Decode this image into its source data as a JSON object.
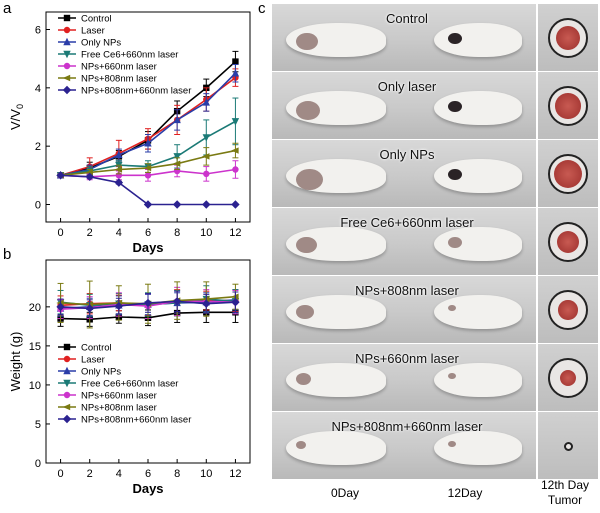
{
  "panel_letters": {
    "a": "a",
    "b": "b",
    "c": "c"
  },
  "series_colors": [
    "#000000",
    "#e02020",
    "#2a3da8",
    "#1b7a76",
    "#cc33cc",
    "#7a7a12",
    "#2b2290"
  ],
  "chart_data": [
    {
      "type": "line",
      "panel": "a",
      "xlabel": "Days",
      "ylabel": "V/V",
      "ylabel_subscript": "0",
      "x": [
        0,
        2,
        4,
        6,
        8,
        10,
        12
      ],
      "xlim": [
        -1,
        13
      ],
      "ylim": [
        -0.6,
        6.6
      ],
      "xticks": [
        0,
        2,
        4,
        6,
        8,
        10,
        12
      ],
      "yticks": [
        0,
        2,
        4,
        6
      ],
      "legend_position": "top-left",
      "series": [
        {
          "name": "Control",
          "values": [
            1.0,
            1.25,
            1.65,
            2.2,
            3.2,
            4.0,
            4.9
          ],
          "err": [
            0.05,
            0.2,
            0.2,
            0.3,
            0.35,
            0.3,
            0.35
          ]
        },
        {
          "name": "Laser",
          "values": [
            1.0,
            1.3,
            1.75,
            2.25,
            2.9,
            3.6,
            4.35
          ],
          "err": [
            0.05,
            0.3,
            0.45,
            0.35,
            0.5,
            0.4,
            0.3
          ]
        },
        {
          "name": "Only NPs",
          "values": [
            1.0,
            1.2,
            1.7,
            2.1,
            2.9,
            3.5,
            4.5
          ],
          "err": [
            0.05,
            0.15,
            0.2,
            0.3,
            0.35,
            0.3,
            0.3
          ]
        },
        {
          "name": "Free Ce6+660nm laser",
          "values": [
            1.0,
            1.15,
            1.35,
            1.3,
            1.65,
            2.3,
            2.85
          ],
          "err": [
            0.05,
            0.15,
            0.15,
            0.2,
            0.4,
            0.6,
            0.8
          ]
        },
        {
          "name": "NPs+660nm laser",
          "values": [
            1.0,
            0.95,
            1.0,
            1.0,
            1.15,
            1.05,
            1.2
          ],
          "err": [
            0.05,
            0.1,
            0.15,
            0.2,
            0.2,
            0.25,
            0.3
          ]
        },
        {
          "name": "NPs+808nm laser",
          "values": [
            1.0,
            1.1,
            1.2,
            1.25,
            1.4,
            1.65,
            1.85
          ],
          "err": [
            0.05,
            0.1,
            0.15,
            0.15,
            0.2,
            0.3,
            0.25
          ]
        },
        {
          "name": "NPs+808nm+660nm laser",
          "values": [
            1.0,
            0.95,
            0.75,
            0.0,
            0.0,
            0.0,
            0.0
          ],
          "err": [
            0.03,
            0.05,
            0.05,
            0.0,
            0.0,
            0.0,
            0.0
          ]
        }
      ]
    },
    {
      "type": "line",
      "panel": "b",
      "xlabel": "Days",
      "ylabel": "Weight (g)",
      "x": [
        0,
        2,
        4,
        6,
        8,
        10,
        12
      ],
      "xlim": [
        -1,
        13
      ],
      "ylim": [
        0,
        26
      ],
      "xticks": [
        0,
        2,
        4,
        6,
        8,
        10,
        12
      ],
      "yticks": [
        0,
        5,
        10,
        15,
        20
      ],
      "legend_position": "bottom-left",
      "series": [
        {
          "name": "Control",
          "values": [
            18.5,
            18.4,
            18.7,
            18.6,
            19.2,
            19.3,
            19.3
          ],
          "err": [
            1.0,
            0.9,
            0.8,
            1.0,
            1.2,
            1.3,
            1.3
          ]
        },
        {
          "name": "Laser",
          "values": [
            20.2,
            20.4,
            20.5,
            20.3,
            20.7,
            20.8,
            20.8
          ],
          "err": [
            1.2,
            1.3,
            1.0,
            1.4,
            1.5,
            1.2,
            1.4
          ]
        },
        {
          "name": "Only NPs",
          "values": [
            19.8,
            20.0,
            20.2,
            20.3,
            20.5,
            20.6,
            20.9
          ],
          "err": [
            1.0,
            1.1,
            1.2,
            1.3,
            1.3,
            1.2,
            1.3
          ]
        },
        {
          "name": "Free Ce6+660nm laser",
          "values": [
            20.6,
            20.2,
            20.4,
            20.3,
            20.5,
            21.0,
            20.7
          ],
          "err": [
            1.5,
            1.4,
            1.3,
            1.5,
            1.6,
            1.7,
            1.5
          ]
        },
        {
          "name": "NPs+660nm laser",
          "values": [
            19.7,
            19.9,
            20.3,
            20.1,
            20.7,
            20.7,
            20.6
          ],
          "err": [
            1.2,
            1.4,
            1.5,
            1.6,
            1.8,
            1.5,
            1.5
          ]
        },
        {
          "name": "NPs+808nm laser",
          "values": [
            20.5,
            20.3,
            20.5,
            20.4,
            20.8,
            21.0,
            21.3
          ],
          "err": [
            2.5,
            3.0,
            2.2,
            2.5,
            2.4,
            2.2,
            1.6
          ]
        },
        {
          "name": "NPs+808nm+660nm laser",
          "values": [
            20.0,
            19.8,
            20.1,
            20.5,
            20.7,
            20.4,
            20.6
          ],
          "err": [
            1.0,
            1.1,
            1.0,
            1.2,
            1.3,
            1.2,
            1.3
          ]
        }
      ]
    }
  ],
  "photo_panel": {
    "rows": [
      {
        "label": "Control",
        "tumor_size": 0.8
      },
      {
        "label": "Only laser",
        "tumor_size": 0.85
      },
      {
        "label": "Only NPs",
        "tumor_size": 0.95
      },
      {
        "label": "Free Ce6+660nm laser",
        "tumor_size": 0.75
      },
      {
        "label": "NPs+808nm laser",
        "tumor_size": 0.65
      },
      {
        "label": "NPs+660nm laser",
        "tumor_size": 0.55
      },
      {
        "label": "NPs+808nm+660nm laser",
        "tumor_size": 0.15
      }
    ],
    "columns": {
      "day0": "0Day",
      "day12": "12Day",
      "tumor_line1": "12th Day",
      "tumor_line2": "Tumor"
    }
  }
}
